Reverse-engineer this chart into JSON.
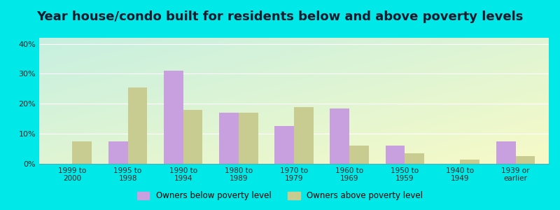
{
  "title": "Year house/condo built for residents below and above poverty levels",
  "categories": [
    "1999 to\n2000",
    "1995 to\n1998",
    "1990 to\n1994",
    "1980 to\n1989",
    "1970 to\n1979",
    "1960 to\n1969",
    "1950 to\n1959",
    "1940 to\n1949",
    "1939 or\nearlier"
  ],
  "below_poverty": [
    0,
    7.5,
    31,
    17,
    12.5,
    18.5,
    6,
    0,
    7.5
  ],
  "above_poverty": [
    7.5,
    25.5,
    18,
    17,
    19,
    6,
    3.5,
    1.5,
    2.5
  ],
  "below_color": "#c8a0e0",
  "above_color": "#c8cc90",
  "ylim": [
    0,
    42
  ],
  "yticks": [
    0,
    10,
    20,
    30,
    40
  ],
  "ytick_labels": [
    "0%",
    "10%",
    "20%",
    "30%",
    "40%"
  ],
  "background_outer": "#00e8e8",
  "legend_below_label": "Owners below poverty level",
  "legend_above_label": "Owners above poverty level",
  "bar_width": 0.35,
  "title_fontsize": 13,
  "title_color": "#1a1a2e"
}
